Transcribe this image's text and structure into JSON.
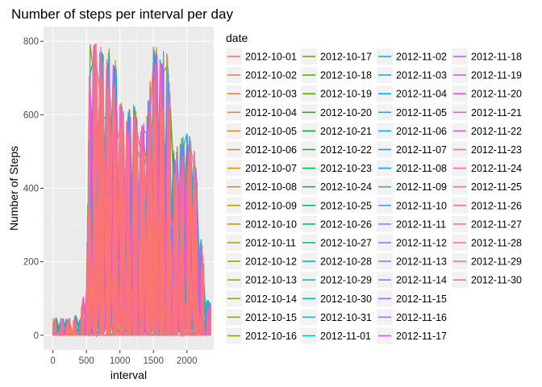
{
  "chart_data": {
    "type": "line",
    "title": "Number of steps per interval per day",
    "xlabel": "interval",
    "ylabel": "Number of Steps",
    "xlim": [
      -140,
      2400
    ],
    "ylim": [
      -40,
      840
    ],
    "x_ticks": [
      0,
      500,
      1000,
      1500,
      2000
    ],
    "y_ticks": [
      0,
      200,
      400,
      600,
      800
    ],
    "grid": true,
    "legend_title": "date",
    "legend_position": "right",
    "series": [
      {
        "name": "2012-10-01",
        "color": "#F8766D"
      },
      {
        "name": "2012-10-02",
        "color": "#F47A5B"
      },
      {
        "name": "2012-10-03",
        "color": "#EF7F46"
      },
      {
        "name": "2012-10-04",
        "color": "#E9842C"
      },
      {
        "name": "2012-10-05",
        "color": "#E38900"
      },
      {
        "name": "2012-10-06",
        "color": "#DC8E00"
      },
      {
        "name": "2012-10-07",
        "color": "#D49200"
      },
      {
        "name": "2012-10-08",
        "color": "#CC9600"
      },
      {
        "name": "2012-10-09",
        "color": "#C49A00"
      },
      {
        "name": "2012-10-10",
        "color": "#BB9D00"
      },
      {
        "name": "2012-10-11",
        "color": "#B2A100"
      },
      {
        "name": "2012-10-12",
        "color": "#A8A400"
      },
      {
        "name": "2012-10-13",
        "color": "#9DA700"
      },
      {
        "name": "2012-10-14",
        "color": "#92AA00"
      },
      {
        "name": "2012-10-15",
        "color": "#86AC00"
      },
      {
        "name": "2012-10-16",
        "color": "#7AAE00"
      },
      {
        "name": "2012-10-17",
        "color": "#6BB100"
      },
      {
        "name": "2012-10-18",
        "color": "#5BB300"
      },
      {
        "name": "2012-10-19",
        "color": "#45B500"
      },
      {
        "name": "2012-10-20",
        "color": "#1FB700"
      },
      {
        "name": "2012-10-21",
        "color": "#00B81F"
      },
      {
        "name": "2012-10-22",
        "color": "#00B93A"
      },
      {
        "name": "2012-10-23",
        "color": "#00BA4E"
      },
      {
        "name": "2012-10-24",
        "color": "#00BB60"
      },
      {
        "name": "2012-10-25",
        "color": "#00BC71"
      },
      {
        "name": "2012-10-26",
        "color": "#00BD81"
      },
      {
        "name": "2012-10-27",
        "color": "#00BE90"
      },
      {
        "name": "2012-10-28",
        "color": "#00BF9F"
      },
      {
        "name": "2012-10-29",
        "color": "#00BFAD"
      },
      {
        "name": "2012-10-30",
        "color": "#00BFBA"
      },
      {
        "name": "2012-10-31",
        "color": "#00BEC6"
      },
      {
        "name": "2012-11-01",
        "color": "#00BDD2"
      },
      {
        "name": "2012-11-02",
        "color": "#00BBDD"
      },
      {
        "name": "2012-11-03",
        "color": "#00B8E7"
      },
      {
        "name": "2012-11-04",
        "color": "#00B4F0"
      },
      {
        "name": "2012-11-05",
        "color": "#00B0F6"
      },
      {
        "name": "2012-11-06",
        "color": "#00ABFD"
      },
      {
        "name": "2012-11-07",
        "color": "#00A5FF"
      },
      {
        "name": "2012-11-08",
        "color": "#139EFF"
      },
      {
        "name": "2012-11-09",
        "color": "#4797FF"
      },
      {
        "name": "2012-11-10",
        "color": "#618FFF"
      },
      {
        "name": "2012-11-11",
        "color": "#7586FF"
      },
      {
        "name": "2012-11-12",
        "color": "#877DFF"
      },
      {
        "name": "2012-11-13",
        "color": "#9673FF"
      },
      {
        "name": "2012-11-14",
        "color": "#A46BFF"
      },
      {
        "name": "2012-11-15",
        "color": "#B165FF"
      },
      {
        "name": "2012-11-16",
        "color": "#BC60F9"
      },
      {
        "name": "2012-11-17",
        "color": "#C65CF2"
      },
      {
        "name": "2012-11-18",
        "color": "#D059EB"
      },
      {
        "name": "2012-11-19",
        "color": "#D957E3"
      },
      {
        "name": "2012-11-20",
        "color": "#E157DA"
      },
      {
        "name": "2012-11-21",
        "color": "#E858D0"
      },
      {
        "name": "2012-11-22",
        "color": "#ED5BC6"
      },
      {
        "name": "2012-11-23",
        "color": "#F25FBB"
      },
      {
        "name": "2012-11-24",
        "color": "#F664AF"
      },
      {
        "name": "2012-11-25",
        "color": "#F968A3"
      },
      {
        "name": "2012-11-26",
        "color": "#FB6D97"
      },
      {
        "name": "2012-11-27",
        "color": "#FC718B"
      },
      {
        "name": "2012-11-28",
        "color": "#FC747F"
      },
      {
        "name": "2012-11-29",
        "color": "#FB7774"
      },
      {
        "name": "2012-11-30",
        "color": "#F8766D"
      }
    ],
    "profile": {
      "note_x": [
        0,
        200,
        400,
        500,
        550,
        600,
        700,
        800,
        850,
        900,
        1000,
        1100,
        1200,
        1300,
        1400,
        1500,
        1550,
        1600,
        1700,
        1800,
        1900,
        2000,
        2100,
        2200,
        2300,
        2355
      ],
      "max_y": [
        50,
        45,
        60,
        150,
        795,
        805,
        790,
        760,
        785,
        800,
        650,
        600,
        650,
        560,
        600,
        790,
        785,
        765,
        790,
        500,
        540,
        550,
        540,
        300,
        100,
        90
      ]
    }
  }
}
